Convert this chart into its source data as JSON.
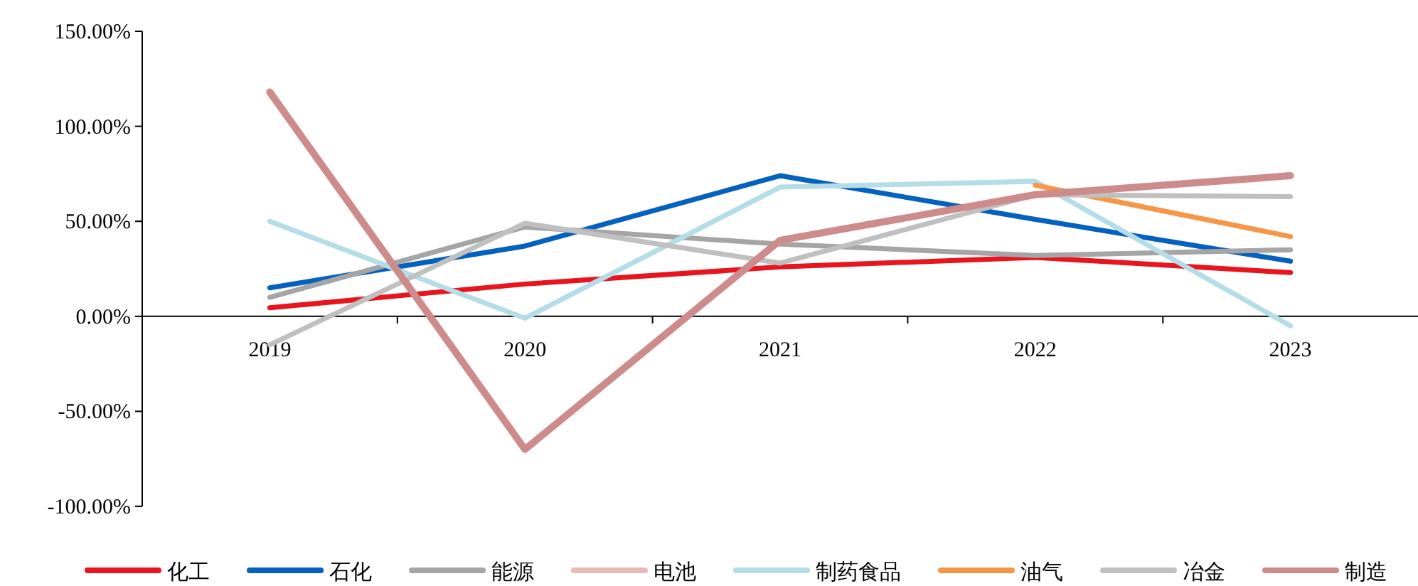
{
  "chart_data": {
    "type": "line",
    "categories": [
      "2019",
      "2020",
      "2021",
      "2022",
      "2023"
    ],
    "ylim": [
      -100,
      150
    ],
    "yticks": [
      {
        "value": -100,
        "label": "-100.00%"
      },
      {
        "value": -50,
        "label": "-50.00%"
      },
      {
        "value": 0,
        "label": "0.00%"
      },
      {
        "value": 50,
        "label": "50.00%"
      },
      {
        "value": 100,
        "label": "100.00%"
      },
      {
        "value": 150,
        "label": "150.00%"
      }
    ],
    "grid": false,
    "legend": "bottom",
    "marker": "none",
    "line_style": "solid",
    "series": [
      {
        "name": "化工",
        "color": "#e8141e",
        "values": [
          4.5,
          17,
          26,
          31,
          23
        ]
      },
      {
        "name": "石化",
        "color": "#0561be",
        "values": [
          15,
          37,
          74,
          51,
          29
        ]
      },
      {
        "name": "能源",
        "color": "#a5a5a5",
        "values": [
          10,
          47,
          38,
          32,
          35
        ]
      },
      {
        "name": "电池",
        "color": "#e9b9b7",
        "values": [
          null,
          null,
          null,
          null,
          null
        ]
      },
      {
        "name": "制药食品",
        "color": "#b4dde8",
        "values": [
          50,
          -1,
          68,
          71,
          -5
        ]
      },
      {
        "name": "油气",
        "color": "#f79646",
        "values": [
          null,
          null,
          null,
          69,
          42
        ]
      },
      {
        "name": "冶金",
        "color": "#c0c0c0",
        "values": [
          -15,
          49,
          28,
          64,
          63
        ]
      },
      {
        "name": "制造",
        "color": "#cd8b8b",
        "values": [
          118,
          -70,
          40,
          64,
          74
        ]
      }
    ]
  }
}
